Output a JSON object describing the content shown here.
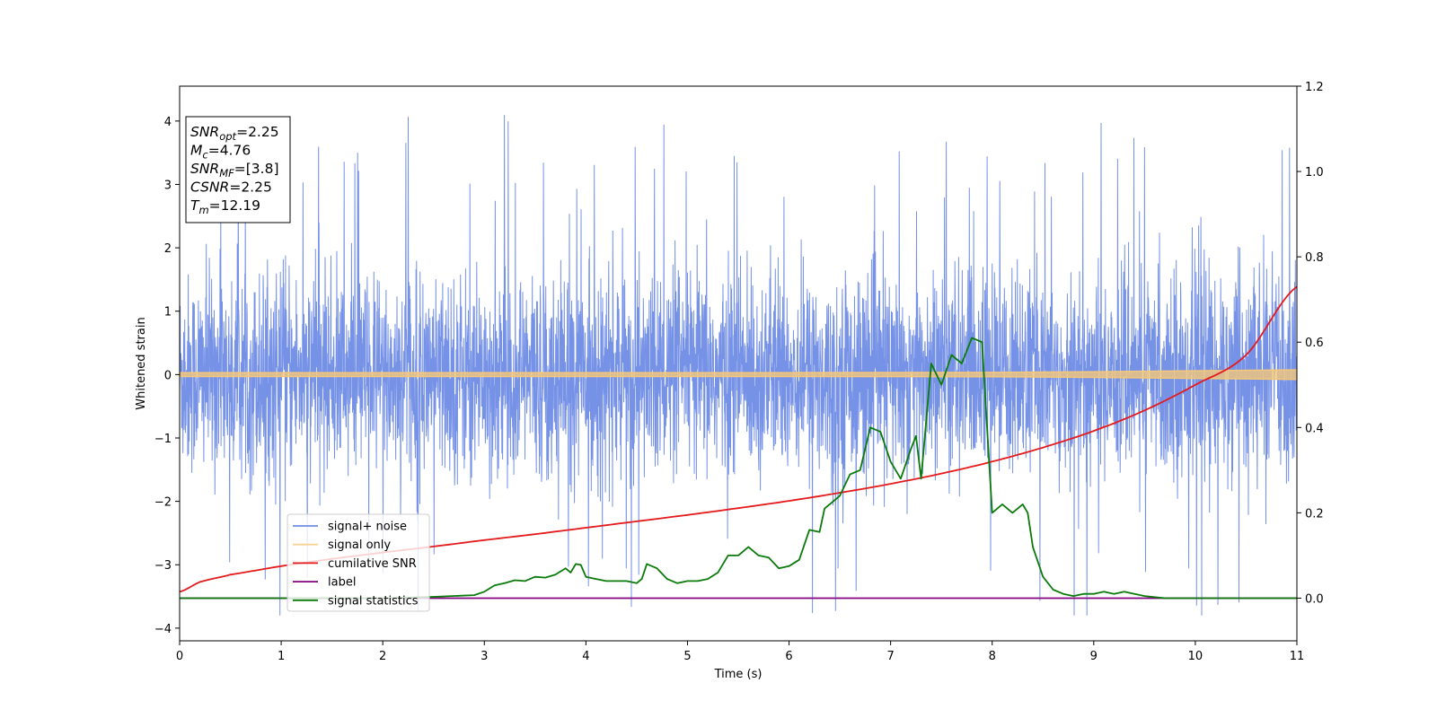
{
  "chart_data": {
    "type": "line",
    "title": "",
    "xlabel": "Time (s)",
    "ylabel": "Whitened strain",
    "xlim": [
      0,
      11
    ],
    "ylim": [
      -4.2,
      4.55
    ],
    "y2lim": [
      -0.1,
      1.2
    ],
    "grid": false,
    "x_ticks": [
      "0",
      "1",
      "2",
      "3",
      "4",
      "5",
      "6",
      "7",
      "8",
      "9",
      "10",
      "11"
    ],
    "y_ticks": [
      "−4",
      "−3",
      "−2",
      "−1",
      "0",
      "1",
      "2",
      "3",
      "4"
    ],
    "y2_ticks": [
      "0.0",
      "0.2",
      "0.4",
      "0.6",
      "0.8",
      "1.0",
      "1.2"
    ],
    "legend_placement": "lower-left",
    "colors": {
      "noise": "#6f8ce6",
      "signal": "#f4c77a",
      "csnr": "#e41a1c",
      "label": "#800080",
      "stat": "#0a7a0a"
    },
    "annotation": [
      {
        "symbol": "SNR",
        "sub": "opt",
        "value": "=2.25"
      },
      {
        "symbol": "M",
        "sub": "c",
        "value": "=4.76"
      },
      {
        "symbol": "SNR",
        "sub": "MF",
        "value": "=[3.8]"
      },
      {
        "symbol": "CSNR",
        "sub": "",
        "value": "=2.25"
      },
      {
        "symbol": "T",
        "sub": "m",
        "value": "=12.19"
      }
    ],
    "series": [
      {
        "name": "signal+ noise",
        "axis": "left",
        "style": "noise",
        "x_range": [
          0,
          11
        ],
        "std": 0.78,
        "envelope": [
          -3.8,
          4.2
        ]
      },
      {
        "name": "signal only",
        "axis": "left",
        "style": "band",
        "x": [
          0,
          2,
          4,
          6,
          8,
          9,
          10,
          11
        ],
        "amplitude": [
          0.03,
          0.03,
          0.03,
          0.03,
          0.035,
          0.045,
          0.06,
          0.075
        ]
      },
      {
        "name": "cumilative SNR",
        "axis": "right",
        "x": [
          0,
          0.2,
          0.5,
          1,
          1.5,
          2,
          2.5,
          3,
          3.5,
          4,
          4.5,
          5,
          5.5,
          6,
          6.5,
          7,
          7.5,
          8,
          8.5,
          9,
          9.5,
          10,
          10.5,
          11
        ],
        "y": [
          0.015,
          0.038,
          0.055,
          0.075,
          0.092,
          0.107,
          0.121,
          0.136,
          0.15,
          0.165,
          0.18,
          0.195,
          0.211,
          0.228,
          0.247,
          0.268,
          0.292,
          0.32,
          0.353,
          0.392,
          0.44,
          0.5,
          0.57,
          0.73
        ]
      },
      {
        "name": "label",
        "axis": "right",
        "x": [
          0,
          11
        ],
        "y": [
          0,
          0
        ]
      },
      {
        "name": "signal statistics",
        "axis": "right",
        "x": [
          0,
          1,
          2,
          2.5,
          2.9,
          3.0,
          3.1,
          3.2,
          3.3,
          3.4,
          3.5,
          3.6,
          3.7,
          3.8,
          3.85,
          3.9,
          3.95,
          4.0,
          4.1,
          4.2,
          4.3,
          4.4,
          4.5,
          4.55,
          4.6,
          4.7,
          4.8,
          4.9,
          5.0,
          5.1,
          5.2,
          5.3,
          5.4,
          5.5,
          5.6,
          5.7,
          5.8,
          5.9,
          6.0,
          6.1,
          6.2,
          6.3,
          6.35,
          6.4,
          6.5,
          6.6,
          6.7,
          6.8,
          6.9,
          7.0,
          7.1,
          7.2,
          7.25,
          7.3,
          7.4,
          7.5,
          7.6,
          7.7,
          7.8,
          7.9,
          8.0,
          8.1,
          8.2,
          8.3,
          8.35,
          8.4,
          8.5,
          8.6,
          8.7,
          8.8,
          8.9,
          9.0,
          9.1,
          9.2,
          9.3,
          9.4,
          9.5,
          9.7,
          10.0,
          10.5,
          11
        ],
        "y": [
          0.0,
          0.0,
          0.0,
          0.003,
          0.007,
          0.015,
          0.03,
          0.035,
          0.042,
          0.04,
          0.05,
          0.048,
          0.055,
          0.07,
          0.06,
          0.08,
          0.078,
          0.05,
          0.045,
          0.04,
          0.04,
          0.04,
          0.035,
          0.045,
          0.08,
          0.07,
          0.045,
          0.035,
          0.04,
          0.04,
          0.045,
          0.06,
          0.1,
          0.1,
          0.12,
          0.1,
          0.095,
          0.07,
          0.075,
          0.09,
          0.16,
          0.155,
          0.21,
          0.22,
          0.24,
          0.29,
          0.3,
          0.4,
          0.39,
          0.32,
          0.28,
          0.35,
          0.38,
          0.28,
          0.55,
          0.5,
          0.57,
          0.55,
          0.61,
          0.6,
          0.2,
          0.22,
          0.2,
          0.22,
          0.2,
          0.12,
          0.05,
          0.02,
          0.01,
          0.005,
          0.01,
          0.01,
          0.015,
          0.01,
          0.015,
          0.01,
          0.005,
          0.0,
          0.0,
          0.0,
          0.0
        ]
      }
    ]
  }
}
